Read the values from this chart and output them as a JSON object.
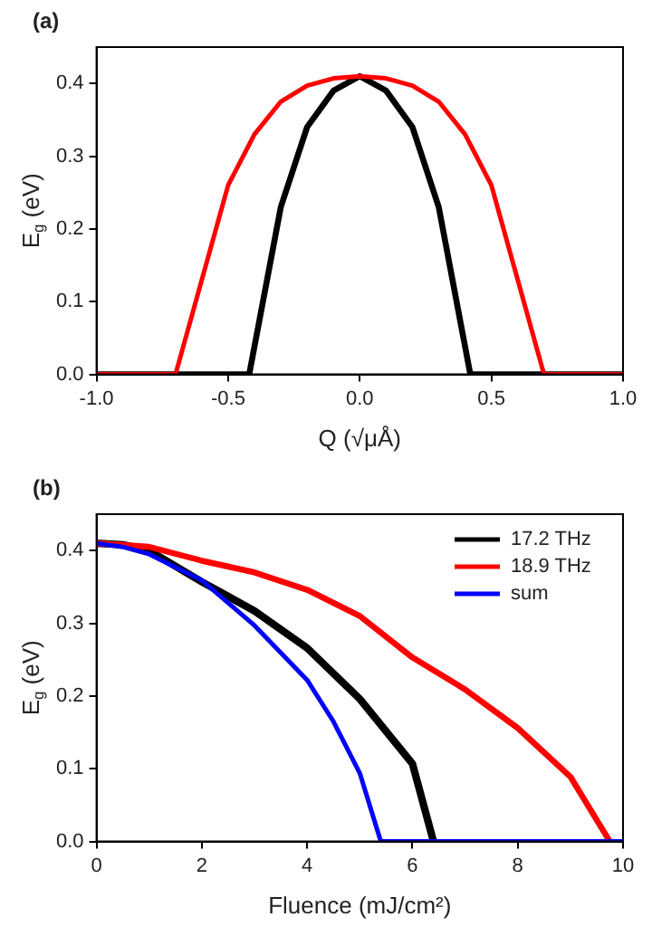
{
  "chart_data": [
    {
      "type": "line",
      "title": "(a)",
      "xlabel": "Q (√μÅ)",
      "ylabel": "E$_{g}$ (eV)",
      "xlim": [
        -1,
        1
      ],
      "ylim": [
        0,
        0.45
      ],
      "xticks": [
        {
          "value": -1,
          "label": "-1.0"
        },
        {
          "value": -0.5,
          "label": "-0.5"
        },
        {
          "value": 0,
          "label": "0.0"
        },
        {
          "value": 0.5,
          "label": "0.5"
        },
        {
          "value": 1,
          "label": "1.0"
        }
      ],
      "yticks": [
        {
          "value": 0,
          "label": "0.0"
        },
        {
          "value": 0.1,
          "label": "0.1"
        },
        {
          "value": 0.2,
          "label": "0.2"
        },
        {
          "value": 0.3,
          "label": "0.3"
        },
        {
          "value": 0.4,
          "label": "0.4"
        }
      ],
      "grid": false,
      "legend": false,
      "marker": "none",
      "line_style": "solid",
      "series": [
        {
          "color": "#000000",
          "x": [
            -1,
            -0.42,
            -0.3,
            -0.2,
            -0.1,
            0,
            0.1,
            0.2,
            0.3,
            0.42,
            1
          ],
          "values": [
            0,
            0,
            0.23,
            0.34,
            0.39,
            0.41,
            0.39,
            0.34,
            0.23,
            0,
            0
          ]
        },
        {
          "color": "#ff0000",
          "x": [
            -1,
            -0.7,
            -0.5,
            -0.4,
            -0.3,
            -0.2,
            -0.1,
            0,
            0.1,
            0.2,
            0.3,
            0.4,
            0.5,
            0.7,
            1
          ],
          "values": [
            0,
            0,
            0.26,
            0.33,
            0.375,
            0.397,
            0.407,
            0.41,
            0.407,
            0.397,
            0.375,
            0.33,
            0.26,
            0,
            0
          ]
        }
      ]
    },
    {
      "type": "line",
      "title": "(b)",
      "xlabel": "Fluence (mJ/cm²)",
      "ylabel": "E$_{g}$ (eV)",
      "xlim": [
        0,
        10
      ],
      "ylim": [
        0,
        0.45
      ],
      "xticks": [
        0,
        2,
        4,
        6,
        8,
        10
      ],
      "yticks": [
        {
          "value": 0,
          "label": "0.0"
        },
        {
          "value": 0.1,
          "label": "0.1"
        },
        {
          "value": 0.2,
          "label": "0.2"
        },
        {
          "value": 0.3,
          "label": "0.3"
        },
        {
          "value": 0.4,
          "label": "0.4"
        }
      ],
      "grid": false,
      "legend": "top right",
      "marker": "none",
      "line_style": "solid",
      "series": [
        {
          "name": "17.2 THz",
          "color": "#000000",
          "x": [
            0,
            0.5,
            1,
            2,
            3,
            4,
            5,
            6,
            6.4
          ],
          "values": [
            0.41,
            0.408,
            0.4,
            0.357,
            0.317,
            0.266,
            0.196,
            0.107,
            0
          ]
        },
        {
          "name": "18.9 THz",
          "color": "#ff0000",
          "x": [
            0,
            1,
            2,
            3,
            4,
            5,
            6,
            7,
            8,
            9,
            9.75
          ],
          "values": [
            0.41,
            0.405,
            0.386,
            0.37,
            0.346,
            0.31,
            0.253,
            0.209,
            0.156,
            0.089,
            0
          ]
        },
        {
          "name": "sum",
          "color": "#0000ff",
          "x": [
            0,
            0.5,
            1,
            2,
            3,
            4,
            4.5,
            5,
            5.4,
            10
          ],
          "values": [
            0.41,
            0.405,
            0.395,
            0.359,
            0.297,
            0.222,
            0.165,
            0.094,
            0,
            0
          ]
        }
      ]
    }
  ]
}
